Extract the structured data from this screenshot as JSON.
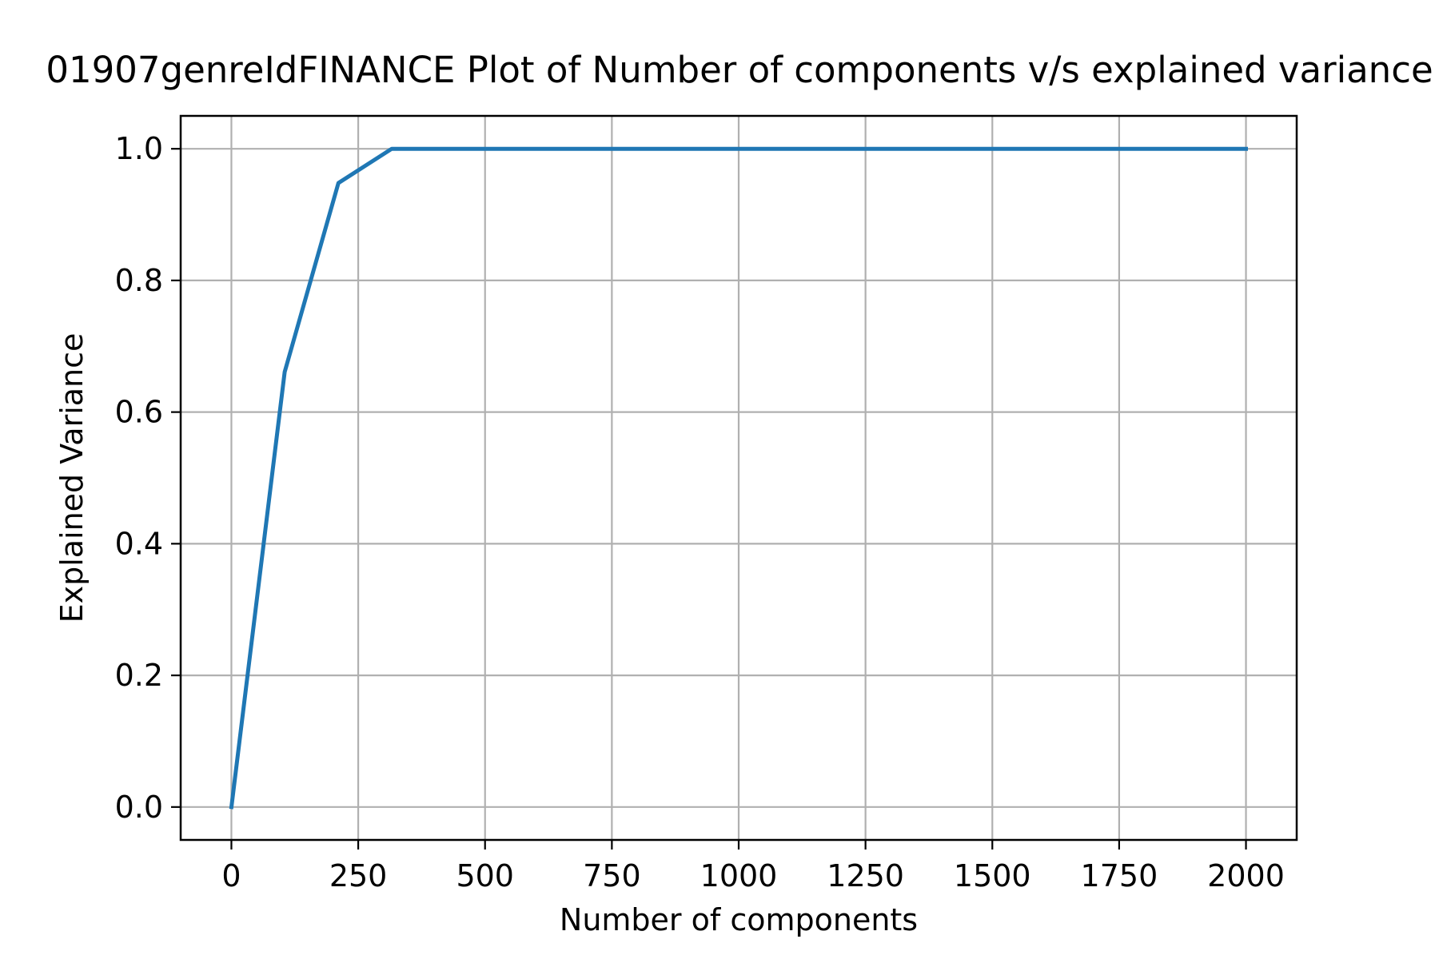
{
  "chart_data": {
    "type": "line",
    "title": "01907genreIdFINANCE Plot of Number of components v/s explained variance",
    "xlabel": "Number of components",
    "ylabel": "Explained Variance",
    "xlim": [
      -100,
      2100
    ],
    "ylim": [
      -0.05,
      1.05
    ],
    "xticks": [
      0,
      250,
      500,
      750,
      1000,
      1250,
      1500,
      1750,
      2000
    ],
    "xtick_labels": [
      "0",
      "250",
      "500",
      "750",
      "1000",
      "1250",
      "1500",
      "1750",
      "2000"
    ],
    "yticks": [
      0.0,
      0.2,
      0.4,
      0.6,
      0.8,
      1.0
    ],
    "ytick_labels": [
      "0.0",
      "0.2",
      "0.4",
      "0.6",
      "0.8",
      "1.0"
    ],
    "grid": true,
    "series": [
      {
        "color": "#1f77b4",
        "x": [
          0,
          105,
          211,
          316,
          421,
          526,
          632,
          737,
          842,
          947,
          1053,
          1158,
          1263,
          1368,
          1474,
          1579,
          1684,
          1789,
          1895,
          2000
        ],
        "y": [
          0.0,
          0.661,
          0.948,
          1.0,
          1.0,
          1.0,
          1.0,
          1.0,
          1.0,
          1.0,
          1.0,
          1.0,
          1.0,
          1.0,
          1.0,
          1.0,
          1.0,
          1.0,
          1.0,
          1.0
        ]
      }
    ]
  }
}
